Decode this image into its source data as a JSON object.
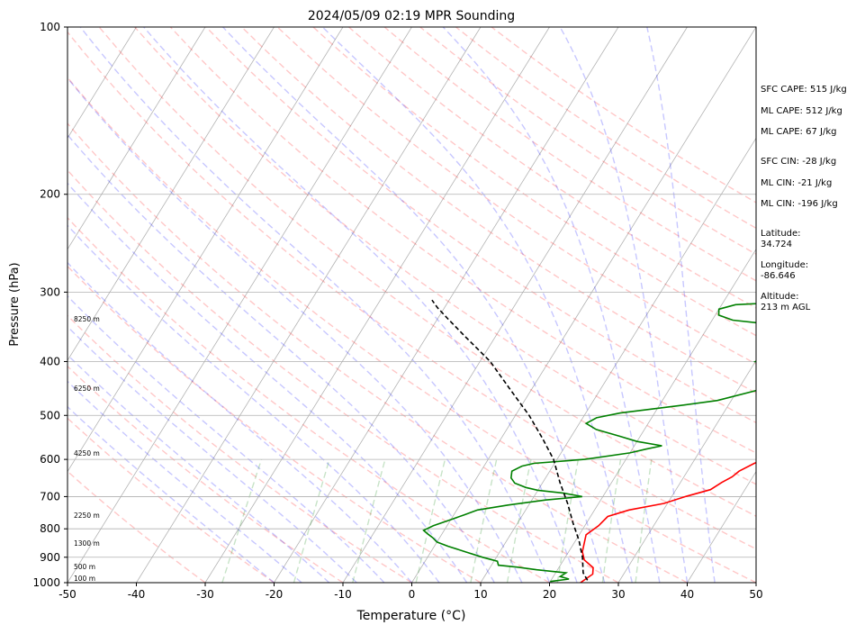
{
  "chart_data": {
    "type": "line",
    "title": "2024/05/09 02:19 MPR Sounding",
    "xlabel": "Temperature (°C)",
    "ylabel": "Pressure (hPa)",
    "xlim": [
      -50,
      50
    ],
    "ylim": [
      1000,
      100
    ],
    "yscale": "log",
    "grid": true,
    "x_ticks": [
      -50,
      -40,
      -30,
      -20,
      -10,
      0,
      10,
      20,
      30,
      40,
      50
    ],
    "y_ticks": [
      1000,
      900,
      800,
      700,
      600,
      500,
      400,
      300,
      200,
      100
    ],
    "series": [
      {
        "color": "#ff0000",
        "points": [
          [
            24.5,
            1000
          ],
          [
            25.5,
            965
          ],
          [
            25.0,
            940
          ],
          [
            23.0,
            910
          ],
          [
            22.0,
            880
          ],
          [
            21.5,
            850
          ],
          [
            21.0,
            820
          ],
          [
            22.0,
            790
          ],
          [
            22.5,
            760
          ],
          [
            25.0,
            740
          ],
          [
            29.5,
            720
          ],
          [
            32.0,
            700
          ],
          [
            35.0,
            680
          ],
          [
            36.0,
            660
          ],
          [
            37.0,
            645
          ],
          [
            37.5,
            630
          ],
          [
            39.0,
            610
          ],
          [
            41.5,
            590
          ],
          [
            41.0,
            575
          ],
          [
            43.0,
            560
          ],
          [
            44.5,
            545
          ],
          [
            45.0,
            530
          ],
          [
            44.0,
            512
          ],
          [
            44.5,
            495
          ],
          [
            45.5,
            480
          ],
          [
            46.0,
            462
          ],
          [
            45.0,
            445
          ],
          [
            43.5,
            425
          ],
          [
            41.0,
            400
          ],
          [
            40.0,
            390
          ],
          [
            40.5,
            370
          ],
          [
            43.0,
            352
          ],
          [
            45.5,
            337
          ],
          [
            47.0,
            318
          ],
          [
            47.0,
            308
          ],
          [
            49.5,
            302
          ],
          [
            51.0,
            298
          ]
        ]
      },
      {
        "color": "#008000",
        "points": [
          [
            20.0,
            995
          ],
          [
            22.5,
            985
          ],
          [
            21.0,
            975
          ],
          [
            21.5,
            960
          ],
          [
            17.0,
            948
          ],
          [
            14.0,
            938
          ],
          [
            11.0,
            930
          ],
          [
            10.5,
            915
          ],
          [
            8.0,
            900
          ],
          [
            5.0,
            880
          ],
          [
            2.0,
            860
          ],
          [
            0.0,
            845
          ],
          [
            -1.0,
            830
          ],
          [
            -2.0,
            818
          ],
          [
            -3.0,
            805
          ],
          [
            -2.0,
            790
          ],
          [
            0.0,
            770
          ],
          [
            1.5,
            755
          ],
          [
            3.0,
            740
          ],
          [
            7.0,
            725
          ],
          [
            12.0,
            710
          ],
          [
            17.0,
            700
          ],
          [
            14.0,
            690
          ],
          [
            10.0,
            682
          ],
          [
            8.0,
            674
          ],
          [
            6.0,
            662
          ],
          [
            5.0,
            648
          ],
          [
            4.5,
            630
          ],
          [
            5.5,
            617
          ],
          [
            7.0,
            610
          ],
          [
            14.0,
            600
          ],
          [
            20.0,
            584
          ],
          [
            22.0,
            575
          ],
          [
            24.0,
            567
          ],
          [
            20.0,
            557
          ],
          [
            17.0,
            545
          ],
          [
            13.0,
            530
          ],
          [
            11.0,
            517
          ],
          [
            12.0,
            505
          ],
          [
            15.0,
            495
          ],
          [
            23.0,
            480
          ],
          [
            28.0,
            470
          ],
          [
            33.0,
            450
          ],
          [
            34.0,
            440
          ],
          [
            35.0,
            432
          ],
          [
            36.0,
            420
          ],
          [
            37.0,
            410
          ],
          [
            30.0,
            400
          ],
          [
            31.0,
            390
          ],
          [
            38.0,
            378
          ],
          [
            40.0,
            368
          ],
          [
            38.0,
            358
          ],
          [
            32.0,
            346
          ],
          [
            23.0,
            337
          ],
          [
            20.5,
            330
          ],
          [
            20.0,
            322
          ],
          [
            22.0,
            316
          ],
          [
            33.0,
            311
          ],
          [
            36.0,
            308
          ]
        ]
      },
      {
        "color": "#000000",
        "points": [
          [
            25.3,
            990
          ],
          [
            24.0,
            960
          ],
          [
            22.5,
            900
          ],
          [
            20.5,
            840
          ],
          [
            18.0,
            780
          ],
          [
            15.5,
            720
          ],
          [
            12.5,
            660
          ],
          [
            9.5,
            600
          ],
          [
            6.0,
            550
          ],
          [
            2.0,
            500
          ],
          [
            -3.0,
            450
          ],
          [
            -8.5,
            400
          ],
          [
            -14.5,
            360
          ],
          [
            -18.5,
            335
          ],
          [
            -21.0,
            320
          ],
          [
            -22.5,
            310
          ]
        ]
      }
    ],
    "reference_lines": [
      {
        "kind": "isotherm",
        "color": "#808080"
      },
      {
        "kind": "dry adiabat",
        "color": "#ff0000"
      },
      {
        "kind": "moist adiabat",
        "color": "#0000ff"
      },
      {
        "kind": "mixing ratio",
        "color": "#008000"
      }
    ],
    "height_labels": [
      "8250 m",
      "6250 m",
      "4250 m",
      "2250 m",
      "1300 m",
      "500 m",
      "100 m"
    ],
    "side_annotations": [
      "SFC CAPE: 515 J/kg",
      "ML CAPE: 512 J/kg",
      "ML CAPE: 67 J/kg",
      "SFC CIN: -28 J/kg",
      "ML CIN: -21 J/kg",
      "ML CIN: -196 J/kg",
      "Latitude:",
      "34.724",
      "Longitude:",
      "-86.646",
      "Altitude:",
      "213 m AGL"
    ]
  }
}
